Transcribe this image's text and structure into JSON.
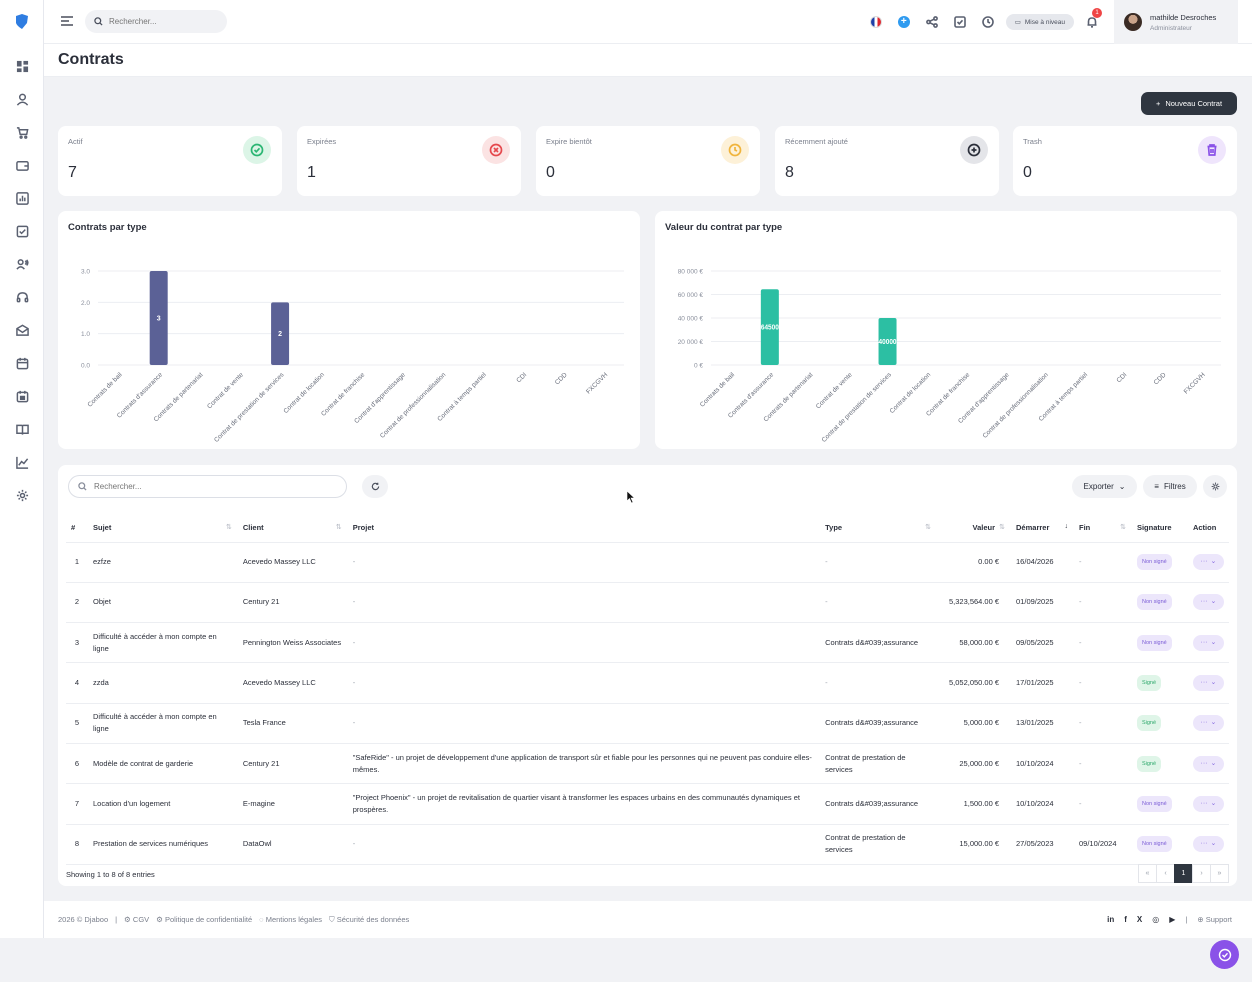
{
  "topbar": {
    "search_placeholder": "Rechercher...",
    "upgrade_label": "Mise à niveau",
    "notification_count": "1",
    "user_name": "mathilde Desroches",
    "user_role": "Administrateur"
  },
  "page": {
    "title": "Contrats",
    "new_button": "Nouveau Contrat"
  },
  "stats": [
    {
      "label": "Actif",
      "value": "7",
      "color": "#2bb673"
    },
    {
      "label": "Expirées",
      "value": "1",
      "color": "#e5484d"
    },
    {
      "label": "Expire bientôt",
      "value": "0",
      "color": "#f0b43c"
    },
    {
      "label": "Récemment ajouté",
      "value": "8",
      "color": "#4a4f5c"
    },
    {
      "label": "Trash",
      "value": "0",
      "color": "#8a52e8"
    }
  ],
  "chart_data": [
    {
      "type": "bar",
      "title": "Contrats par type",
      "categories": [
        "Contrats de bail",
        "Contrats d'assurance",
        "Contrats de partenariat",
        "Contrat de vente",
        "Contrat de prestation de services",
        "Contrat de location",
        "Contrat de franchise",
        "Contrat d'apprentissage",
        "Contrat de professionnalisation",
        "Contrat à temps partiel",
        "CDI",
        "CDD",
        "FXCGVH"
      ],
      "values": [
        0,
        3,
        0,
        0,
        2,
        0,
        0,
        0,
        0,
        0,
        0,
        0,
        0
      ],
      "data_labels": [
        "",
        "3",
        "",
        "",
        "2",
        "",
        "",
        "",
        "",
        "",
        "",
        "",
        ""
      ],
      "yticks": [
        "0.0",
        "1.0",
        "2.0",
        "3.0"
      ],
      "ylim": [
        0,
        3
      ],
      "color": "#5b6196",
      "grid": true
    },
    {
      "type": "bar",
      "title": "Valeur du contrat par type",
      "categories": [
        "Contrats de bail",
        "Contrats d'assurance",
        "Contrats de partenariat",
        "Contrat de vente",
        "Contrat de prestation de services",
        "Contrat de location",
        "Contrat de franchise",
        "Contrat d'apprentissage",
        "Contrat de professionnalisation",
        "Contrat à temps partiel",
        "CDI",
        "CDD",
        "FXCGVH"
      ],
      "values": [
        0,
        64500,
        0,
        0,
        40000,
        0,
        0,
        0,
        0,
        0,
        0,
        0,
        0
      ],
      "data_labels": [
        "",
        "64500",
        "",
        "",
        "40000",
        "",
        "",
        "",
        "",
        "",
        "",
        "",
        ""
      ],
      "yticks": [
        "0 €",
        "20 000 €",
        "40 000 €",
        "60 000 €",
        "80 000 €"
      ],
      "ylim": [
        0,
        80000
      ],
      "color": "#2cbfa3",
      "grid": true
    }
  ],
  "table": {
    "search_placeholder": "Rechercher...",
    "export_label": "Exporter",
    "filter_label": "Filtres",
    "columns": [
      "#",
      "Sujet",
      "Client",
      "Projet",
      "Type",
      "Valeur",
      "Démarrer",
      "Fin",
      "Signature",
      "Action"
    ],
    "rows": [
      {
        "n": "1",
        "sujet": "ezfze",
        "client": "Acevedo Massey LLC",
        "projet": "-",
        "type": "-",
        "valeur": "0.00 €",
        "debut": "16/04/2026",
        "fin": "-",
        "signature": "Non signé",
        "signed": false
      },
      {
        "n": "2",
        "sujet": "Objet",
        "client": "Century 21",
        "projet": "-",
        "type": "-",
        "valeur": "5,323,564.00 €",
        "debut": "01/09/2025",
        "fin": "-",
        "signature": "Non signé",
        "signed": false
      },
      {
        "n": "3",
        "sujet": "Difficulté à accéder à mon compte en ligne",
        "client": "Pennington Weiss Associates",
        "projet": "-",
        "type": "Contrats d&#039;assurance",
        "valeur": "58,000.00 €",
        "debut": "09/05/2025",
        "fin": "-",
        "signature": "Non signé",
        "signed": false
      },
      {
        "n": "4",
        "sujet": "zzda",
        "client": "Acevedo Massey LLC",
        "projet": "-",
        "type": "-",
        "valeur": "5,052,050.00 €",
        "debut": "17/01/2025",
        "fin": "-",
        "signature": "Signé",
        "signed": true
      },
      {
        "n": "5",
        "sujet": "Difficulté à accéder à mon compte en ligne",
        "client": "Tesla France",
        "projet": "-",
        "type": "Contrats d&#039;assurance",
        "valeur": "5,000.00 €",
        "debut": "13/01/2025",
        "fin": "-",
        "signature": "Signé",
        "signed": true
      },
      {
        "n": "6",
        "sujet": "Modèle de contrat de garderie",
        "client": "Century 21",
        "projet": "\"SafeRide\" - un projet de développement d'une application de transport sûr et fiable pour les personnes qui ne peuvent pas conduire elles-mêmes.",
        "type": "Contrat de prestation de services",
        "valeur": "25,000.00 €",
        "debut": "10/10/2024",
        "fin": "-",
        "signature": "Signé",
        "signed": true
      },
      {
        "n": "7",
        "sujet": "Location d'un logement",
        "client": "E-magine",
        "projet": "\"Project Phoenix\" - un projet de revitalisation de quartier visant à transformer les espaces urbains en des communautés dynamiques et prospères.",
        "type": "Contrats d&#039;assurance",
        "valeur": "1,500.00 €",
        "debut": "10/10/2024",
        "fin": "-",
        "signature": "Non signé",
        "signed": false
      },
      {
        "n": "8",
        "sujet": "Prestation de services numériques",
        "client": "DataOwl",
        "projet": "-",
        "type": "Contrat de prestation de services",
        "valeur": "15,000.00 €",
        "debut": "27/05/2023",
        "fin": "09/10/2024",
        "signature": "Non signé",
        "signed": false
      }
    ],
    "action_label": "···",
    "showing": "Showing 1 to 8 of 8 entries",
    "pager": [
      "«",
      "‹",
      "1",
      "›",
      "»"
    ]
  },
  "footer": {
    "copyright": "2026 © Djaboo",
    "links": [
      "CGV",
      "Politique de confidentialité",
      "Mentions légales",
      "Sécurité des données"
    ],
    "social": [
      "in",
      "f",
      "X",
      "◎",
      "▶"
    ],
    "support": "Support"
  }
}
